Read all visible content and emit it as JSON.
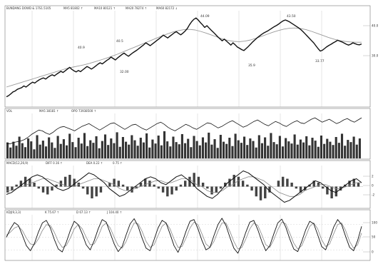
{
  "chart_data": [
    {
      "type": "line",
      "panel": "price",
      "header_items": [
        "BUNDANG DOWD & 17S1.5105",
        "MA5 81802 ↑",
        "MA10 80121 ↑",
        "MA20 78274 ↑",
        "MA60 82172 ↓"
      ],
      "series": [
        {
          "values": [
            16600,
            17000,
            17600,
            18300,
            18600,
            19200,
            19500,
            19800,
            20400,
            20000,
            20600,
            21200,
            21700,
            21400,
            22000,
            22500,
            22900,
            23200,
            22800,
            23400,
            23900,
            24300,
            23900,
            24500,
            25000,
            25500,
            25100,
            25700,
            26300,
            26900,
            26200,
            25700,
            25300,
            25800,
            25400,
            26000,
            26600,
            27200,
            26800,
            26300,
            26800,
            27400,
            28000,
            28500,
            28100,
            28700,
            29300,
            29800,
            30500,
            30000,
            29500,
            30200,
            30800,
            31400,
            31900,
            31300,
            30800,
            31400,
            32000,
            32500,
            33000,
            33600,
            34200,
            34800,
            35500,
            35000,
            34500,
            35100,
            35700,
            36300,
            36900,
            37500,
            38200,
            37700,
            37200,
            37800,
            38400,
            39000,
            39400,
            38800,
            38300,
            38900,
            39600,
            40500,
            41800,
            42900,
            43700,
            44200,
            43500,
            42600,
            41800,
            40900,
            41500,
            40700,
            39900,
            39200,
            38400,
            37600,
            36900,
            36200,
            36800,
            36100,
            35400,
            34700,
            35500,
            34800,
            34000,
            33600,
            33100,
            32800,
            33500,
            34200,
            35000,
            35800,
            36500,
            37200,
            37800,
            38400,
            38900,
            39300,
            39700,
            40200,
            40700,
            41200,
            41600,
            42100,
            42700,
            43200,
            43500,
            43200,
            42800,
            42300,
            41800,
            41300,
            40800,
            40200,
            39500,
            38700,
            37900,
            37100,
            36300,
            35500,
            34500,
            33500,
            32600,
            32900,
            33500,
            34100,
            34600,
            35000,
            35500,
            35900,
            36400,
            36100,
            35800,
            35400,
            35000,
            34700,
            35000,
            35500,
            35200,
            34900,
            34800,
            35100
          ]
        },
        {
          "name": "MA",
          "values": [
            20000,
            20600,
            21200,
            21800,
            22400,
            23000,
            23600,
            24200,
            24800,
            25400,
            26000,
            26600,
            27000,
            27400,
            27800,
            28300,
            28900,
            29500,
            30100,
            30800,
            31500,
            32300,
            33100,
            33900,
            34700,
            35500,
            36300,
            37100,
            37900,
            38600,
            39300,
            39800,
            40100,
            40200,
            40000,
            39500,
            38900,
            38200,
            37500,
            36800,
            36300,
            36000,
            35900,
            36100,
            36500,
            37100,
            37800,
            38500,
            39200,
            39800,
            40300,
            40600,
            40700,
            40500,
            40100,
            39500,
            38800,
            38100,
            37400,
            36800,
            36300,
            36000,
            35800,
            35700,
            35700
          ]
        }
      ],
      "annotations": [
        "40.5",
        "40.9",
        "32.00",
        "44.09",
        "43.50",
        "35.9",
        "33.77"
      ],
      "ticks": [
        "40.0",
        "30.0"
      ]
    },
    {
      "type": "bar",
      "panel": "volume",
      "header_items": [
        "VOL",
        "MA5 38181 ↑",
        "OPO 73938500 ↑"
      ],
      "values": [
        44,
        30,
        46,
        35,
        60,
        42,
        31,
        55,
        47,
        25,
        64,
        38,
        49,
        33,
        58,
        44,
        29,
        62,
        40,
        53,
        36,
        68,
        45,
        31,
        57,
        41,
        70,
        34,
        50,
        43,
        61,
        28,
        48,
        66,
        37,
        55,
        42,
        72,
        32,
        59,
        46,
        38,
        64,
        50,
        35,
        57,
        44,
        69,
        30,
        52,
        41,
        63,
        36,
        75,
        47,
        33,
        60,
        45,
        39,
        67,
        42,
        54,
        31,
        62,
        48,
        36,
        58,
        44,
        71,
        38,
        53,
        29,
        65,
        46,
        40,
        57,
        34,
        68,
        50,
        43,
        60,
        37,
        55,
        48,
        30,
        64,
        42,
        58,
        35,
        70,
        45,
        39,
        62,
        33,
        56,
        47,
        41,
        66,
        38,
        52,
        44,
        61,
        36,
        57,
        49,
        32,
        63,
        40,
        54,
        46,
        37,
        59,
        43,
        68,
        35,
        51,
        45,
        60,
        38,
        55
      ],
      "line_values": [
        42,
        40,
        44,
        46,
        48,
        52,
        58,
        66,
        72,
        78,
        76,
        70,
        66,
        72,
        80,
        86,
        88,
        84,
        80,
        76,
        82,
        88,
        92,
        96,
        90,
        84,
        78,
        84,
        90,
        96,
        98,
        92,
        86,
        80,
        86,
        92,
        94,
        88,
        82,
        78,
        84,
        90,
        96,
        100,
        94,
        86,
        80,
        76,
        82,
        88,
        94,
        90,
        84,
        80,
        86,
        92,
        98,
        96,
        90,
        84,
        88,
        94,
        100,
        104,
        98,
        92,
        86,
        90,
        96,
        102,
        106,
        100,
        94,
        90,
        96,
        102,
        98,
        92,
        88,
        94,
        100,
        104,
        98,
        96,
        102,
        108,
        112,
        106,
        100,
        104,
        108,
        102,
        96,
        100,
        106,
        110,
        104,
        100,
        106,
        112
      ]
    },
    {
      "type": "line",
      "panel": "macd",
      "header_items": [
        "MACD(12,26,9)",
        "DIFF 0.16 ↑",
        "DEA 0.22 ↑",
        "0.75 ↑"
      ],
      "bars": [
        -3,
        -2,
        1,
        3,
        5,
        4,
        2,
        -1,
        -3,
        -4,
        -2,
        1,
        3,
        5,
        6,
        4,
        2,
        -1,
        -4,
        -6,
        -5,
        -3,
        0,
        2,
        4,
        3,
        1,
        -2,
        -3,
        -1,
        2,
        4,
        3,
        1,
        -1,
        -3,
        -5,
        -4,
        -2,
        1,
        3,
        5,
        7,
        5,
        2,
        -1,
        -4,
        -3,
        -1,
        2,
        4,
        6,
        5,
        3,
        1,
        -2,
        -5,
        -7,
        -6,
        -3,
        0,
        3,
        5,
        4,
        2,
        -1,
        -3,
        -2,
        1,
        3,
        2,
        -1,
        -4,
        -6,
        -5,
        -2,
        1,
        3,
        4,
        2
      ],
      "series": [
        {
          "name": "DIFF",
          "values": [
            -4,
            -3,
            -1,
            1,
            3,
            5,
            6,
            5,
            3,
            1,
            -1,
            -2,
            -1,
            1,
            3,
            5,
            7,
            6,
            4,
            2,
            -1,
            -3,
            -5,
            -4,
            -2,
            0,
            2,
            4,
            5,
            4,
            2,
            1,
            3,
            5,
            6,
            4,
            2,
            -1,
            -3,
            -5,
            -6,
            -4,
            -1,
            2,
            4,
            6,
            8,
            7,
            5,
            3,
            1,
            -2,
            -4,
            -6,
            -8,
            -7,
            -5,
            -3,
            -1,
            1,
            3,
            2,
            0,
            -2,
            -3,
            -1,
            1,
            3,
            4,
            2
          ]
        },
        {
          "name": "DEA",
          "values": [
            -2,
            -2,
            -1,
            0,
            1,
            2,
            3,
            4,
            4,
            3,
            2,
            1,
            0,
            0,
            1,
            2,
            3,
            4,
            4,
            3,
            2,
            1,
            -1,
            -2,
            -2,
            -1,
            0,
            1,
            2,
            3,
            3,
            2,
            2,
            3,
            4,
            4,
            3,
            1,
            0,
            -2,
            -3,
            -3,
            -2,
            0,
            1,
            3,
            4,
            5,
            5,
            4,
            3,
            1,
            -1,
            -3,
            -4,
            -5,
            -5,
            -4,
            -2,
            -1,
            0,
            1,
            1,
            0,
            -1,
            -1,
            0,
            1,
            2,
            2
          ]
        }
      ],
      "ticks": [
        "2",
        "0",
        "-2"
      ]
    },
    {
      "type": "line",
      "panel": "kdj",
      "header_items": [
        "KDJ(9,3,3)",
        "K 75.67 ↑",
        "D 67.13 ↑",
        "J 104.40 ↑"
      ],
      "series": [
        {
          "name": "K",
          "values": [
            50,
            70,
            85,
            78,
            55,
            30,
            18,
            35,
            62,
            84,
            90,
            72,
            45,
            22,
            15,
            38,
            66,
            88,
            80,
            58,
            32,
            20,
            42,
            70,
            92,
            86,
            60,
            34,
            16,
            28,
            56,
            82,
            94,
            76,
            48,
            24,
            18,
            44,
            72,
            90,
            84,
            58,
            30,
            14,
            36,
            64,
            88,
            92,
            70,
            42,
            20,
            26,
            54,
            80,
            95,
            78,
            50,
            24,
            12,
            34,
            62,
            86,
            90,
            68,
            40,
            18,
            30,
            58,
            84,
            93,
            74,
            46,
            22,
            16,
            40,
            68,
            88,
            82,
            56,
            28,
            20,
            46,
            74,
            92,
            80,
            52,
            26,
            18,
            42,
            76
          ]
        },
        {
          "name": "D",
          "values": [
            55,
            62,
            72,
            76,
            66,
            48,
            34,
            32,
            46,
            66,
            80,
            78,
            62,
            40,
            26,
            30,
            48,
            70,
            80,
            70,
            50,
            32,
            34,
            52,
            76,
            84,
            72,
            50,
            30,
            24,
            40,
            64,
            84,
            82,
            64,
            40,
            26,
            32,
            54,
            76,
            84,
            70,
            46,
            26,
            28,
            48,
            72,
            86,
            80,
            58,
            34,
            26,
            40,
            64,
            84,
            84,
            64,
            40,
            22,
            26,
            46,
            70,
            84,
            78,
            56,
            32,
            26,
            44,
            68,
            86,
            82,
            60,
            36,
            22,
            30,
            52,
            76,
            84,
            70,
            44,
            28,
            34,
            58,
            80,
            84,
            66,
            40,
            24,
            32,
            60
          ]
        }
      ],
      "ticks": [
        "100",
        "50",
        "0"
      ]
    }
  ]
}
